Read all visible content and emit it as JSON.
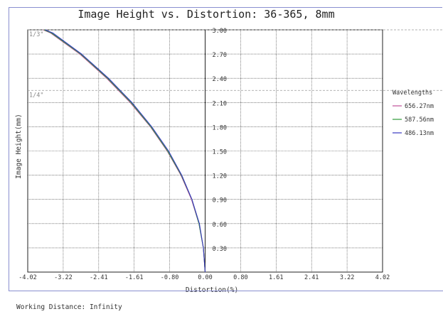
{
  "title": "Image Height vs. Distortion: 36-365, 8mm",
  "footer": "Working Distance: Infinity",
  "legend_title": "Wavelengths",
  "chart_data": {
    "type": "line",
    "title": "Image Height vs. Distortion: 36-365, 8mm",
    "xlabel": "Distortion(%)",
    "ylabel": "Image Height(mm)",
    "xlim": [
      -4.02,
      4.02
    ],
    "ylim": [
      0,
      3.0
    ],
    "x_ticks": [
      "-4.02",
      "-3.22",
      "-2.41",
      "-1.61",
      "-0.80",
      "0.00",
      "0.80",
      "1.61",
      "2.41",
      "3.22",
      "4.02"
    ],
    "y_ticks": [
      "0.30",
      "0.60",
      "0.90",
      "1.20",
      "1.50",
      "1.80",
      "2.10",
      "2.40",
      "2.70",
      "3.00"
    ],
    "grid": true,
    "legend_position": "right",
    "reference_lines": [
      {
        "label": "1/3\"",
        "y": 3.0
      },
      {
        "label": "1/4\"",
        "y": 2.25
      }
    ],
    "series": [
      {
        "name": "656.27nm",
        "color": "#c0509a",
        "x": [
          0,
          -0.04,
          -0.14,
          -0.31,
          -0.55,
          -0.86,
          -1.24,
          -1.7,
          -2.23,
          -2.84,
          -3.5,
          -3.67
        ],
        "y": [
          0,
          0.3,
          0.6,
          0.9,
          1.2,
          1.5,
          1.8,
          2.1,
          2.4,
          2.7,
          2.96,
          3.0
        ]
      },
      {
        "name": "587.56nm",
        "color": "#2e9a3a",
        "x": [
          0,
          -0.04,
          -0.14,
          -0.3,
          -0.54,
          -0.85,
          -1.23,
          -1.68,
          -2.21,
          -2.82,
          -3.48,
          -3.65
        ],
        "y": [
          0,
          0.3,
          0.6,
          0.9,
          1.2,
          1.5,
          1.8,
          2.1,
          2.4,
          2.7,
          2.96,
          3.0
        ]
      },
      {
        "name": "486.13nm",
        "color": "#3a3ac0",
        "x": [
          0,
          -0.04,
          -0.13,
          -0.3,
          -0.53,
          -0.83,
          -1.21,
          -1.66,
          -2.19,
          -2.8,
          -3.45,
          -3.62
        ],
        "y": [
          0,
          0.3,
          0.6,
          0.9,
          1.2,
          1.5,
          1.8,
          2.1,
          2.4,
          2.7,
          2.96,
          3.0
        ]
      }
    ]
  }
}
